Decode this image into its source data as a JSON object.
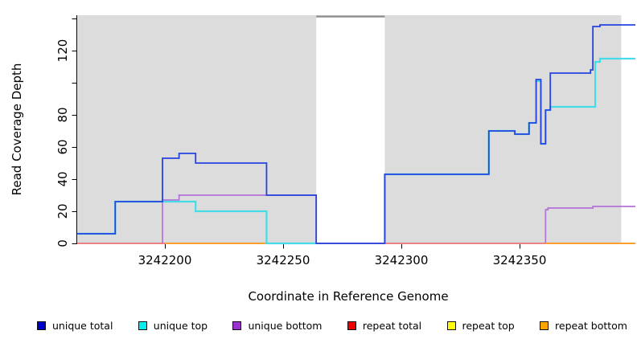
{
  "chart_data": {
    "type": "line",
    "subtype": "step-coverage",
    "title": "",
    "xlabel": "Coordinate in Reference Genome",
    "ylabel": "Read Coverage Depth",
    "xlim": [
      3242163,
      3242399
    ],
    "ylim": [
      0,
      142
    ],
    "grid": false,
    "legend_position": "bottom",
    "background": {
      "color": "#dcdcdc",
      "regions": [
        {
          "from": 3242163,
          "to": 3242264
        },
        {
          "from": 3242293,
          "to": 3242393
        }
      ]
    },
    "gap_region": {
      "from": 3242264,
      "to": 3242293,
      "cap_color": "#8f8f8f"
    },
    "x_ticks": [
      {
        "v": 3242200,
        "label": "3242200"
      },
      {
        "v": 3242250,
        "label": "3242250"
      },
      {
        "v": 3242300,
        "label": "3242300"
      },
      {
        "v": 3242350,
        "label": "3242350"
      }
    ],
    "y_ticks": [
      {
        "v": 0,
        "label": "0"
      },
      {
        "v": 20,
        "label": "20"
      },
      {
        "v": 40,
        "label": "40"
      },
      {
        "v": 60,
        "label": "60"
      },
      {
        "v": 80,
        "label": "80"
      },
      {
        "v": 100,
        "label": ""
      },
      {
        "v": 120,
        "label": "120"
      },
      {
        "v": 140,
        "label": ""
      }
    ],
    "series": [
      {
        "name": "repeat top",
        "color": "#f0e65a",
        "width": 1.4,
        "segments": [
          {
            "steps": [
              [
                3242163,
                0
              ]
            ],
            "end": 3242399
          }
        ]
      },
      {
        "name": "unique bottom",
        "color": "#b273d9",
        "width": 1.7,
        "segments": [
          {
            "steps": [
              [
                3242199,
                27
              ],
              [
                3242206,
                30
              ],
              [
                3242264,
                0
              ]
            ],
            "end": 3242293
          },
          {
            "steps": [
              [
                3242361,
                21
              ],
              [
                3242362,
                22
              ],
              [
                3242381,
                23
              ]
            ],
            "end": 3242399
          }
        ]
      },
      {
        "name": "repeat total",
        "color": "#e8607a",
        "width": 1.4,
        "segments": [
          {
            "steps": [
              [
                3242163,
                0
              ]
            ],
            "end": 3242399
          }
        ]
      },
      {
        "name": "repeat bottom",
        "color": "#ff9d20",
        "width": 1.7,
        "segments": [
          {
            "steps": [
              [
                3242200,
                0
              ]
            ],
            "end": 3242243
          },
          {
            "steps": [
              [
                3242361,
                0
              ]
            ],
            "end": 3242399
          }
        ]
      },
      {
        "name": "unique top",
        "color": "#45dce8",
        "width": 2.2,
        "segments": [
          {
            "steps": [
              [
                3242163,
                6
              ],
              [
                3242179,
                26
              ],
              [
                3242213,
                20
              ],
              [
                3242243,
                0
              ]
            ],
            "end": 3242264
          },
          {
            "steps": [
              [
                3242293,
                43
              ],
              [
                3242337,
                70
              ],
              [
                3242348,
                68
              ],
              [
                3242354,
                75
              ],
              [
                3242357,
                101
              ],
              [
                3242359,
                62
              ],
              [
                3242361,
                83
              ],
              [
                3242363,
                85
              ],
              [
                3242382,
                113
              ],
              [
                3242384,
                115
              ]
            ],
            "end": 3242399
          }
        ]
      },
      {
        "name": "unique total",
        "color": "#2543e0",
        "width": 1.8,
        "segments": [
          {
            "steps": [
              [
                3242163,
                6
              ],
              [
                3242179,
                26
              ],
              [
                3242199,
                53
              ],
              [
                3242206,
                56
              ],
              [
                3242213,
                50
              ],
              [
                3242243,
                30
              ],
              [
                3242264,
                0
              ],
              [
                3242293,
                43
              ],
              [
                3242337,
                70
              ],
              [
                3242348,
                68
              ],
              [
                3242354,
                75
              ],
              [
                3242357,
                102
              ],
              [
                3242359,
                62
              ],
              [
                3242361,
                83
              ],
              [
                3242363,
                106
              ],
              [
                3242380,
                108
              ],
              [
                3242381,
                135
              ],
              [
                3242384,
                136
              ]
            ],
            "end": 3242399
          }
        ]
      }
    ]
  },
  "legend": {
    "items": [
      {
        "label": "unique total",
        "swatch_color": "#0000cc"
      },
      {
        "label": "unique top",
        "swatch_color": "#00eeee"
      },
      {
        "label": "unique bottom",
        "swatch_color": "#9933cc"
      },
      {
        "label": "repeat total",
        "swatch_color": "#ee0000"
      },
      {
        "label": "repeat top",
        "swatch_color": "#ffff00"
      },
      {
        "label": "repeat bottom",
        "swatch_color": "#ffa500"
      }
    ]
  }
}
